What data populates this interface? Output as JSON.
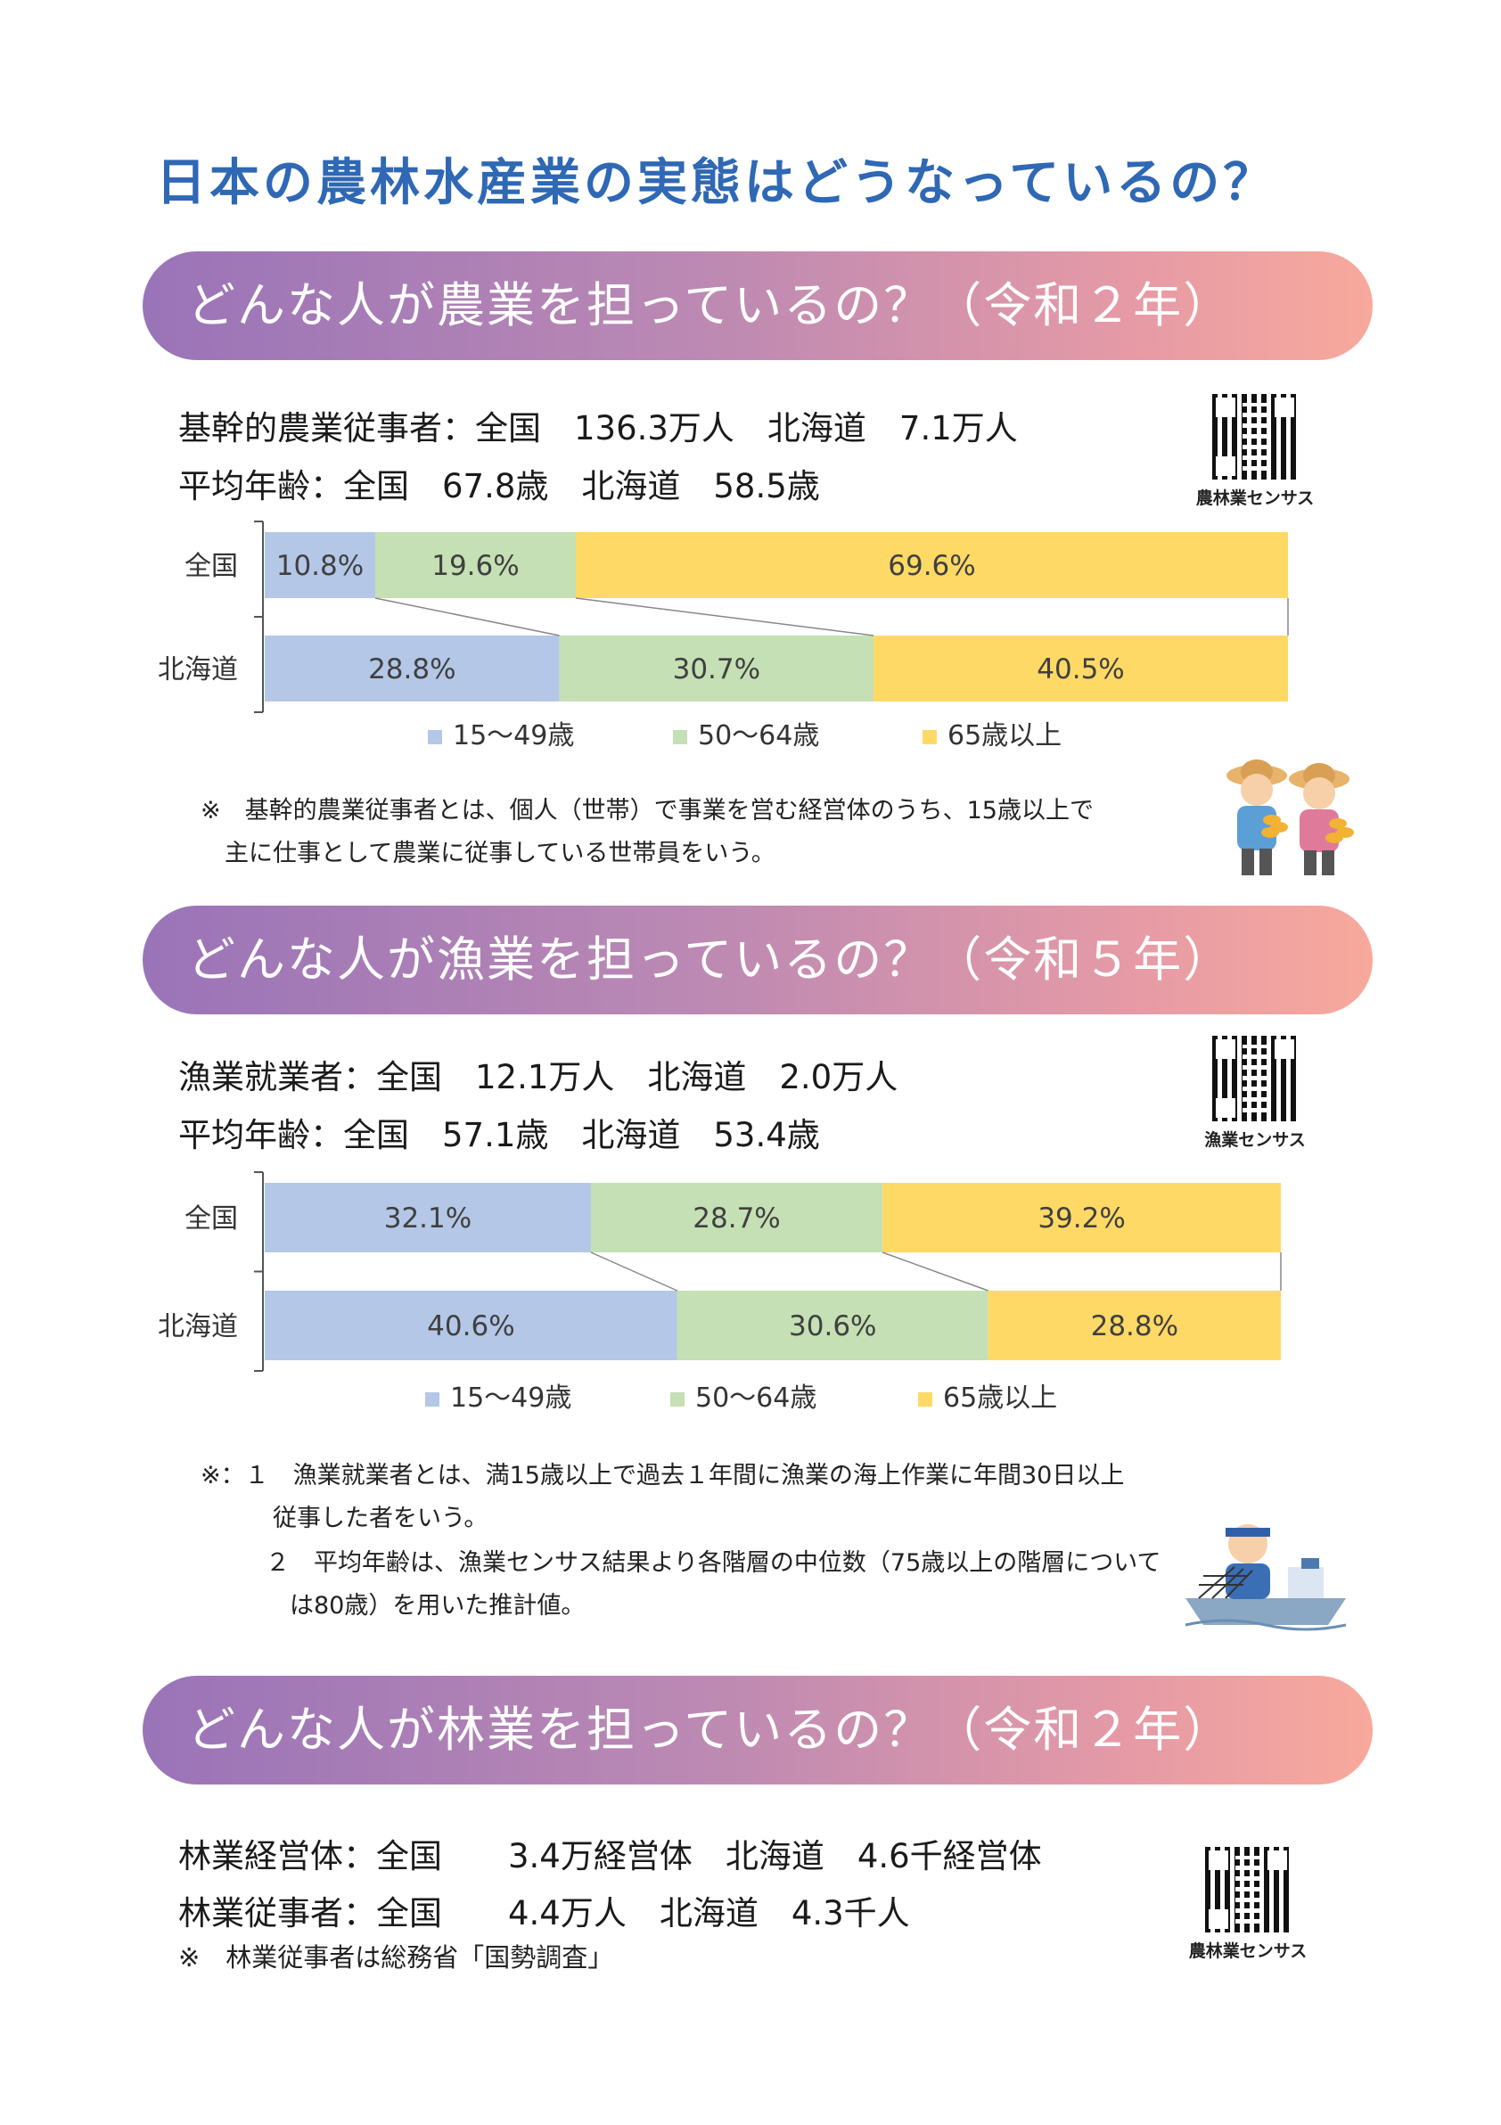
{
  "title": "日本の農林水産業の実態はどうなっているの？",
  "colors": {
    "title": "#2f68b4",
    "age_15_49": "#b4c7e7",
    "age_50_64": "#c5e0b4",
    "age_65_over": "#ffd966",
    "banner_start": "#9a74b8",
    "banner_end": "#f8a99c"
  },
  "agriculture": {
    "heading": "どんな人が農業を担っているの？（令和２年）",
    "stat1": "基幹的農業従事者：全国　136.3万人　北海道　7.1万人",
    "stat2": "平均年齢：全国　67.8歳　北海道　58.5歳",
    "qr_label": "農林業センサス",
    "qr_icon": "qr-code-icon",
    "note": "※　基幹的農業従事者とは、個人（世帯）で事業を営む経営体のうち、15歳以上で\n　主に仕事として農業に従事している世帯員をいう。",
    "illustration": "farmers-with-rice-icon"
  },
  "fishery": {
    "heading": "どんな人が漁業を担っているの？（令和５年）",
    "stat1": "漁業就業者：全国　12.1万人　北海道　2.0万人",
    "stat2": "平均年齢：全国　57.1歳　北海道　53.4歳",
    "qr_label": "漁業センサス",
    "qr_icon": "qr-code-icon",
    "note1": "※：１　漁業就業者とは、満15歳以上で過去１年間に漁業の海上作業に年間30日以上\n　　　従事した者をいう。",
    "note2": "２　平均年齢は、漁業センサス結果より各階層の中位数（75歳以上の階層について\n　は80歳）を用いた推計値。",
    "illustration": "fisherman-with-net-icon"
  },
  "forestry": {
    "heading": "どんな人が林業を担っているの？（令和２年）",
    "stat1": "林業経営体：全国　　3.4万経営体　北海道　4.6千経営体",
    "stat2": "林業従事者：全国　　4.4万人　北海道　4.3千人",
    "note": "※　林業従事者は総務省「国勢調査」",
    "qr_label": "農林業センサス",
    "qr_icon": "qr-code-icon"
  },
  "chart_data": [
    {
      "type": "bar",
      "orientation": "horizontal",
      "stacked": true,
      "normalized_percent": true,
      "categories": [
        "全国",
        "北海道"
      ],
      "series": [
        {
          "name": "15～49歳",
          "values": [
            10.8,
            28.8
          ],
          "labels": [
            "10.8%",
            "28.8%"
          ],
          "color": "#b4c7e7"
        },
        {
          "name": "50～64歳",
          "values": [
            19.6,
            30.7
          ],
          "labels": [
            "19.6%",
            "30.7%"
          ],
          "color": "#c5e0b4"
        },
        {
          "name": "65歳以上",
          "values": [
            69.6,
            40.5
          ],
          "labels": [
            "69.6%",
            "40.5%"
          ],
          "color": "#ffd966"
        }
      ],
      "xlim": [
        0,
        100
      ],
      "legend": "bottom",
      "series_connector_lines": true
    },
    {
      "type": "bar",
      "orientation": "horizontal",
      "stacked": true,
      "normalized_percent": true,
      "categories": [
        "全国",
        "北海道"
      ],
      "series": [
        {
          "name": "15～49歳",
          "values": [
            32.1,
            40.6
          ],
          "labels": [
            "32.1%",
            "40.6%"
          ],
          "color": "#b4c7e7"
        },
        {
          "name": "50～64歳",
          "values": [
            28.7,
            30.6
          ],
          "labels": [
            "28.7%",
            "30.6%"
          ],
          "color": "#c5e0b4"
        },
        {
          "name": "65歳以上",
          "values": [
            39.2,
            28.8
          ],
          "labels": [
            "39.2%",
            "28.8%"
          ],
          "color": "#ffd966"
        }
      ],
      "xlim": [
        0,
        100
      ],
      "legend": "bottom",
      "series_connector_lines": true
    }
  ]
}
